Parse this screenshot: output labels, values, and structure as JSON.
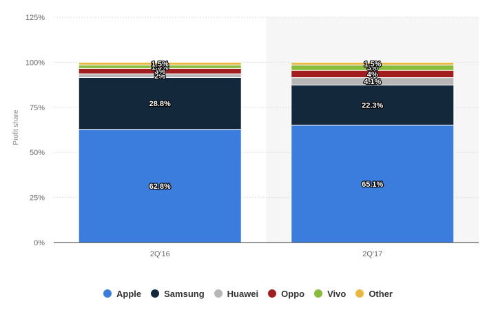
{
  "chart_data": {
    "type": "bar",
    "stacked": true,
    "categories": [
      "2Q'16",
      "2Q'17"
    ],
    "ylabel": "Profit share",
    "ylim": [
      0,
      125
    ],
    "yticks": [
      "0%",
      "25%",
      "50%",
      "75%",
      "100%",
      "125%"
    ],
    "grid": true,
    "legend_position": "bottom",
    "highlighted_category": "2Q'17",
    "series": [
      {
        "name": "Apple",
        "color": "#3b7ddd",
        "values": [
          62.8,
          65.1
        ],
        "labels": [
          "62.8%",
          "65.1%"
        ]
      },
      {
        "name": "Samsung",
        "color": "#14283b",
        "values": [
          28.8,
          22.3
        ],
        "labels": [
          "28.8%",
          "22.3%"
        ]
      },
      {
        "name": "Huawei",
        "color": "#b6b6b6",
        "values": [
          2,
          4.1
        ],
        "labels": [
          "2%",
          "4.1%"
        ]
      },
      {
        "name": "Oppo",
        "color": "#a21e1e",
        "values": [
          3,
          4
        ],
        "labels": [
          "3%",
          "4%"
        ]
      },
      {
        "name": "Vivo",
        "color": "#89bc3c",
        "values": [
          1.9,
          3
        ],
        "labels": [
          "1.9%",
          "3%"
        ]
      },
      {
        "name": "Other",
        "color": "#e8b840",
        "values": [
          1.5,
          1.5
        ],
        "labels": [
          "1.5%",
          "1.5%"
        ]
      }
    ]
  }
}
